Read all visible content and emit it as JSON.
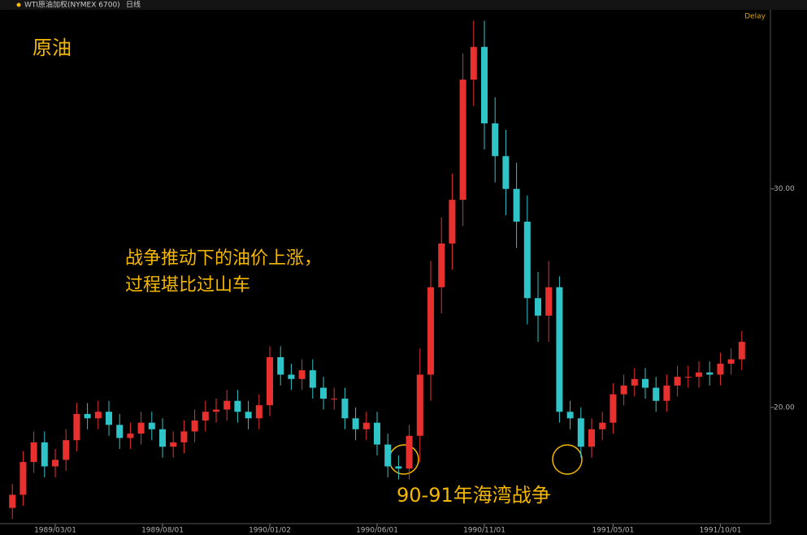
{
  "header": {
    "instrument": "WTI原油加权(NYMEX 6700)",
    "period": "日线",
    "status": "Delay"
  },
  "chart_data": {
    "type": "candlestick",
    "title": "原油",
    "annotations": [
      "战争推动下的油价上涨，",
      "过程堪比过山车",
      "90-91年海湾战争"
    ],
    "categories": [
      null,
      null,
      null,
      null,
      "1989/03/01",
      null,
      null,
      null,
      null,
      null,
      null,
      null,
      null,
      null,
      "1989/08/01",
      null,
      null,
      null,
      null,
      null,
      null,
      null,
      null,
      null,
      "1990/01/02",
      null,
      null,
      null,
      null,
      null,
      null,
      null,
      null,
      null,
      "1990/06/01",
      null,
      null,
      null,
      null,
      null,
      null,
      null,
      null,
      null,
      "1990/11/01",
      null,
      null,
      null,
      null,
      null,
      null,
      null,
      null,
      null,
      null,
      null,
      "1991/05/01",
      null,
      null,
      null,
      null,
      null,
      null,
      null,
      null,
      null,
      "1991/10/01",
      null,
      null
    ],
    "open": [
      15.4,
      16.0,
      17.5,
      18.4,
      17.3,
      17.6,
      18.5,
      19.7,
      19.5,
      19.8,
      19.2,
      18.6,
      18.8,
      19.3,
      19.0,
      18.2,
      18.4,
      18.9,
      19.4,
      19.8,
      19.9,
      20.3,
      19.8,
      19.5,
      20.1,
      22.3,
      21.5,
      21.3,
      21.7,
      20.9,
      20.4,
      20.4,
      19.5,
      19.0,
      19.3,
      18.3,
      17.3,
      17.2,
      18.7,
      21.5,
      25.5,
      27.5,
      29.5,
      35.0,
      36.5,
      33.0,
      31.5,
      30.0,
      28.5,
      25.0,
      24.2,
      25.5,
      19.8,
      19.5,
      18.2,
      19.0,
      19.3,
      20.6,
      21.0,
      21.3,
      20.9,
      20.3,
      21.0,
      21.4,
      21.4,
      21.6,
      21.5,
      22.0,
      22.2
    ],
    "high": [
      16.5,
      18.0,
      18.9,
      18.9,
      18.1,
      19.0,
      20.2,
      20.2,
      20.3,
      20.3,
      19.7,
      19.3,
      19.8,
      19.8,
      19.5,
      18.9,
      19.4,
      19.9,
      20.3,
      20.4,
      20.8,
      20.8,
      20.3,
      20.6,
      22.8,
      22.8,
      22.0,
      22.2,
      22.2,
      21.4,
      20.9,
      20.9,
      20.0,
      19.8,
      19.8,
      18.8,
      17.8,
      19.2,
      22.7,
      26.7,
      28.7,
      30.7,
      36.2,
      37.7,
      37.7,
      34.2,
      32.7,
      31.2,
      29.7,
      26.2,
      26.7,
      26.0,
      20.3,
      20.0,
      19.5,
      19.8,
      21.1,
      21.5,
      21.8,
      21.8,
      21.4,
      21.5,
      21.9,
      21.9,
      22.1,
      22.1,
      22.5,
      22.7,
      23.5
    ],
    "low": [
      14.9,
      15.5,
      17.0,
      16.8,
      16.8,
      17.1,
      18.0,
      19.0,
      19.0,
      18.7,
      18.1,
      18.1,
      18.3,
      18.5,
      17.7,
      17.7,
      17.9,
      18.4,
      18.9,
      19.3,
      19.4,
      19.3,
      19.0,
      19.0,
      19.6,
      21.0,
      20.8,
      20.8,
      20.4,
      19.9,
      19.9,
      19.0,
      18.5,
      18.5,
      17.8,
      16.8,
      16.7,
      16.7,
      17.5,
      20.3,
      24.3,
      26.3,
      28.3,
      33.8,
      31.8,
      30.3,
      28.8,
      27.3,
      23.8,
      23.0,
      23.0,
      19.3,
      19.0,
      17.7,
      17.7,
      18.5,
      18.8,
      20.1,
      20.5,
      20.4,
      19.8,
      19.8,
      20.5,
      20.9,
      20.9,
      21.0,
      21.0,
      21.5,
      21.7
    ],
    "close": [
      16.0,
      17.5,
      18.4,
      17.3,
      17.6,
      18.5,
      19.7,
      19.5,
      19.8,
      19.2,
      18.6,
      18.8,
      19.3,
      19.0,
      18.2,
      18.4,
      18.9,
      19.4,
      19.8,
      19.9,
      20.3,
      19.8,
      19.5,
      20.1,
      22.3,
      21.5,
      21.3,
      21.7,
      20.9,
      20.4,
      20.4,
      19.5,
      19.0,
      19.3,
      18.3,
      17.3,
      17.2,
      18.7,
      21.5,
      25.5,
      27.5,
      29.5,
      35.0,
      36.5,
      33.0,
      31.5,
      30.0,
      28.5,
      25.0,
      24.2,
      25.5,
      19.8,
      19.5,
      18.2,
      19.0,
      19.3,
      20.6,
      21.0,
      21.3,
      20.9,
      20.3,
      21.0,
      21.4,
      21.4,
      21.6,
      21.5,
      22.0,
      22.2,
      23.0
    ],
    "up_color": "#e8312f",
    "down_color": "#2ec4c8",
    "ylim": [
      14.68,
      38.2
    ],
    "yticks": [
      {
        "value": 20,
        "label": "20.00"
      },
      {
        "value": 30,
        "label": "30.00"
      }
    ]
  }
}
